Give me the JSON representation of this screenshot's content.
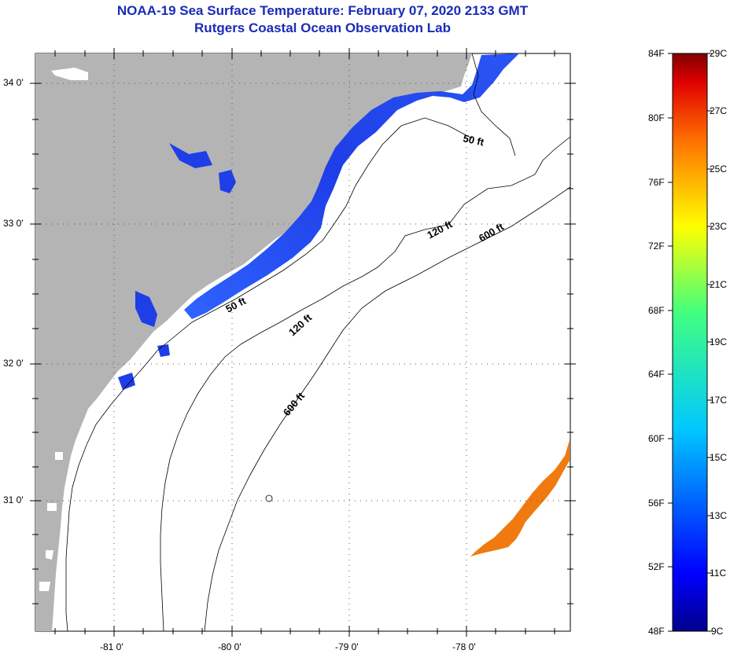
{
  "title_line1": "NOAA-19 Sea Surface Temperature:  February 07, 2020 2133 GMT",
  "title_line2": "Rutgers Coastal Ocean Observation Lab",
  "lat_labels": [
    "34 0'",
    "33 0'",
    "32 0'",
    "31 0'"
  ],
  "lon_labels": [
    "-81 0'",
    "-80 0'",
    "-79 0'",
    "-78 0'"
  ],
  "contour_labels": {
    "c50_north": "50 ft",
    "c50_south": "50 ft",
    "c120_north": "120 ft",
    "c120_south": "120 ft",
    "c600_north": "600 ft",
    "c600_south": "600 ft"
  },
  "colorbar": {
    "f_labels": [
      "84F",
      "80F",
      "76F",
      "72F",
      "68F",
      "64F",
      "60F",
      "56F",
      "52F",
      "48F"
    ],
    "c_labels": [
      "29C",
      "27C",
      "25C",
      "23C",
      "21C",
      "19C",
      "17C",
      "15C",
      "13C",
      "11C",
      "9C"
    ]
  },
  "colors": {
    "land": "#b4b4b4",
    "cold_water": "#1e3ee8",
    "warm_water": "#f07a10",
    "title": "#1a2bb8"
  }
}
